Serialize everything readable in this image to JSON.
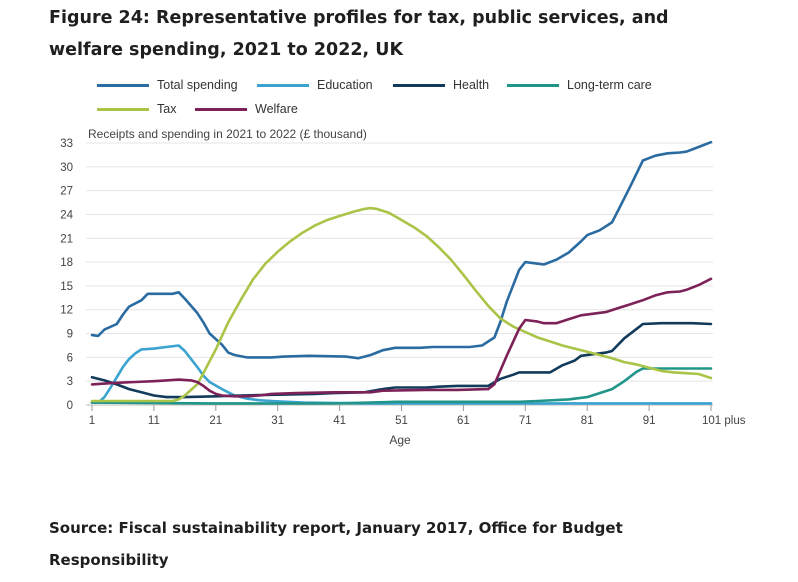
{
  "figure": {
    "title": "Figure 24: Representative profiles for tax, public services, and welfare spending, 2021 to 2022, UK",
    "source": "Source: Fiscal sustainability report, January 2017, Office for Budget Responsibility"
  },
  "chart_data": {
    "type": "line",
    "ylabel": "Receipts and spending in 2021 to 2022 (£ thousand)",
    "xlabel": "Age",
    "ylim": [
      0,
      33
    ],
    "xlim": [
      1,
      101
    ],
    "y_ticks": [
      "0",
      "3",
      "6",
      "9",
      "12",
      "15",
      "18",
      "21",
      "24",
      "27",
      "30",
      "33"
    ],
    "x_ticks": [
      {
        "value": 1,
        "label": "1"
      },
      {
        "value": 11,
        "label": "11"
      },
      {
        "value": 21,
        "label": "21"
      },
      {
        "value": 31,
        "label": "31"
      },
      {
        "value": 41,
        "label": "41"
      },
      {
        "value": 51,
        "label": "51"
      },
      {
        "value": 61,
        "label": "61"
      },
      {
        "value": 71,
        "label": "71"
      },
      {
        "value": 81,
        "label": "81"
      },
      {
        "value": 91,
        "label": "91"
      },
      {
        "value": 101,
        "label": "101 plus"
      }
    ],
    "grid": true,
    "legend_position": "top",
    "series": [
      {
        "name": "Total spending",
        "color": "#2a6ba1",
        "points": [
          [
            1,
            8.8
          ],
          [
            2,
            8.7
          ],
          [
            3,
            9.5
          ],
          [
            5,
            10.2
          ],
          [
            6,
            11.4
          ],
          [
            7,
            12.4
          ],
          [
            9,
            13.2
          ],
          [
            10,
            14.0
          ],
          [
            11,
            14.0
          ],
          [
            13,
            14.0
          ],
          [
            14,
            14.0
          ],
          [
            15,
            14.2
          ],
          [
            16,
            13.4
          ],
          [
            18,
            11.6
          ],
          [
            19,
            10.4
          ],
          [
            20,
            9.0
          ],
          [
            22,
            7.6
          ],
          [
            23,
            6.6
          ],
          [
            24,
            6.3
          ],
          [
            26,
            6.0
          ],
          [
            30,
            6.0
          ],
          [
            32,
            6.1
          ],
          [
            36,
            6.2
          ],
          [
            42,
            6.1
          ],
          [
            44,
            5.9
          ],
          [
            46,
            6.3
          ],
          [
            48,
            6.9
          ],
          [
            50,
            7.2
          ],
          [
            54,
            7.2
          ],
          [
            56,
            7.3
          ],
          [
            62,
            7.3
          ],
          [
            64,
            7.5
          ],
          [
            66,
            8.5
          ],
          [
            67,
            10.5
          ],
          [
            68,
            13.0
          ],
          [
            70,
            17.0
          ],
          [
            71,
            18.0
          ],
          [
            73,
            17.8
          ],
          [
            74,
            17.7
          ],
          [
            76,
            18.3
          ],
          [
            78,
            19.2
          ],
          [
            80,
            20.6
          ],
          [
            81,
            21.4
          ],
          [
            83,
            22.0
          ],
          [
            85,
            23.0
          ],
          [
            86,
            24.5
          ],
          [
            88,
            27.6
          ],
          [
            90,
            30.8
          ],
          [
            92,
            31.4
          ],
          [
            94,
            31.7
          ],
          [
            96,
            31.8
          ],
          [
            97,
            31.9
          ],
          [
            98,
            32.2
          ],
          [
            99,
            32.5
          ],
          [
            101,
            33.1
          ]
        ]
      },
      {
        "name": "Education",
        "color": "#3aa3d0",
        "points": [
          [
            1,
            0.3
          ],
          [
            2,
            0.3
          ],
          [
            3,
            1.0
          ],
          [
            4,
            2.2
          ],
          [
            5,
            3.5
          ],
          [
            6,
            4.8
          ],
          [
            7,
            5.8
          ],
          [
            8,
            6.5
          ],
          [
            9,
            7.0
          ],
          [
            11,
            7.1
          ],
          [
            13,
            7.3
          ],
          [
            15,
            7.5
          ],
          [
            16,
            6.8
          ],
          [
            18,
            4.8
          ],
          [
            19,
            3.7
          ],
          [
            20,
            2.9
          ],
          [
            22,
            2.0
          ],
          [
            23,
            1.6
          ],
          [
            24,
            1.2
          ],
          [
            26,
            0.8
          ],
          [
            28,
            0.6
          ],
          [
            30,
            0.5
          ],
          [
            35,
            0.3
          ],
          [
            45,
            0.2
          ],
          [
            60,
            0.2
          ],
          [
            101,
            0.2
          ]
        ]
      },
      {
        "name": "Health",
        "color": "#123a5a",
        "points": [
          [
            1,
            3.5
          ],
          [
            3,
            3.1
          ],
          [
            5,
            2.6
          ],
          [
            7,
            2.0
          ],
          [
            9,
            1.6
          ],
          [
            11,
            1.2
          ],
          [
            13,
            1.0
          ],
          [
            16,
            1.0
          ],
          [
            21,
            1.1
          ],
          [
            25,
            1.2
          ],
          [
            31,
            1.3
          ],
          [
            37,
            1.4
          ],
          [
            40,
            1.5
          ],
          [
            45,
            1.6
          ],
          [
            48,
            2.0
          ],
          [
            50,
            2.2
          ],
          [
            55,
            2.2
          ],
          [
            57,
            2.3
          ],
          [
            60,
            2.4
          ],
          [
            63,
            2.4
          ],
          [
            65,
            2.4
          ],
          [
            67,
            3.3
          ],
          [
            69,
            3.8
          ],
          [
            70,
            4.1
          ],
          [
            73,
            4.1
          ],
          [
            75,
            4.1
          ],
          [
            77,
            5.0
          ],
          [
            79,
            5.6
          ],
          [
            80,
            6.2
          ],
          [
            82,
            6.4
          ],
          [
            84,
            6.6
          ],
          [
            85,
            6.8
          ],
          [
            87,
            8.4
          ],
          [
            89,
            9.6
          ],
          [
            90,
            10.2
          ],
          [
            93,
            10.3
          ],
          [
            98,
            10.3
          ],
          [
            101,
            10.2
          ]
        ]
      },
      {
        "name": "Long-term care",
        "color": "#21958a",
        "points": [
          [
            1,
            0.3
          ],
          [
            20,
            0.2
          ],
          [
            40,
            0.2
          ],
          [
            46,
            0.3
          ],
          [
            50,
            0.4
          ],
          [
            55,
            0.4
          ],
          [
            60,
            0.4
          ],
          [
            65,
            0.4
          ],
          [
            70,
            0.4
          ],
          [
            73,
            0.5
          ],
          [
            78,
            0.7
          ],
          [
            81,
            1.0
          ],
          [
            85,
            2.0
          ],
          [
            87,
            3.0
          ],
          [
            89,
            4.2
          ],
          [
            90,
            4.6
          ],
          [
            92,
            4.6
          ],
          [
            101,
            4.6
          ]
        ]
      },
      {
        "name": "Tax",
        "color": "#a9c447",
        "points": [
          [
            1,
            0.5
          ],
          [
            10,
            0.5
          ],
          [
            14,
            0.5
          ],
          [
            15,
            0.7
          ],
          [
            16,
            1.2
          ],
          [
            18,
            2.6
          ],
          [
            19,
            4.0
          ],
          [
            21,
            7.0
          ],
          [
            23,
            10.4
          ],
          [
            25,
            13.2
          ],
          [
            27,
            15.8
          ],
          [
            29,
            17.8
          ],
          [
            31,
            19.3
          ],
          [
            33,
            20.6
          ],
          [
            35,
            21.7
          ],
          [
            37,
            22.6
          ],
          [
            39,
            23.3
          ],
          [
            41,
            23.8
          ],
          [
            43,
            24.3
          ],
          [
            45,
            24.7
          ],
          [
            46,
            24.8
          ],
          [
            47,
            24.7
          ],
          [
            49,
            24.2
          ],
          [
            51,
            23.3
          ],
          [
            53,
            22.4
          ],
          [
            55,
            21.3
          ],
          [
            57,
            19.9
          ],
          [
            59,
            18.3
          ],
          [
            61,
            16.4
          ],
          [
            63,
            14.4
          ],
          [
            65,
            12.5
          ],
          [
            67,
            10.9
          ],
          [
            69,
            9.9
          ],
          [
            71,
            9.2
          ],
          [
            73,
            8.5
          ],
          [
            75,
            8.0
          ],
          [
            77,
            7.5
          ],
          [
            79,
            7.1
          ],
          [
            81,
            6.7
          ],
          [
            83,
            6.3
          ],
          [
            85,
            5.9
          ],
          [
            87,
            5.4
          ],
          [
            89,
            5.1
          ],
          [
            91,
            4.7
          ],
          [
            93,
            4.3
          ],
          [
            95,
            4.1
          ],
          [
            97,
            4.0
          ],
          [
            99,
            3.9
          ],
          [
            101,
            3.4
          ]
        ]
      },
      {
        "name": "Welfare",
        "color": "#7c2258",
        "points": [
          [
            1,
            2.6
          ],
          [
            3,
            2.7
          ],
          [
            5,
            2.8
          ],
          [
            8,
            2.9
          ],
          [
            11,
            3.0
          ],
          [
            13,
            3.1
          ],
          [
            15,
            3.2
          ],
          [
            17,
            3.1
          ],
          [
            18,
            2.9
          ],
          [
            19,
            2.4
          ],
          [
            20,
            1.8
          ],
          [
            21,
            1.4
          ],
          [
            22,
            1.2
          ],
          [
            24,
            1.1
          ],
          [
            26,
            1.1
          ],
          [
            28,
            1.2
          ],
          [
            30,
            1.4
          ],
          [
            34,
            1.5
          ],
          [
            40,
            1.6
          ],
          [
            44,
            1.6
          ],
          [
            46,
            1.6
          ],
          [
            48,
            1.8
          ],
          [
            55,
            1.9
          ],
          [
            60,
            1.9
          ],
          [
            65,
            2.0
          ],
          [
            66,
            2.6
          ],
          [
            68,
            6.2
          ],
          [
            70,
            9.6
          ],
          [
            71,
            10.7
          ],
          [
            73,
            10.5
          ],
          [
            74,
            10.3
          ],
          [
            76,
            10.3
          ],
          [
            78,
            10.8
          ],
          [
            80,
            11.3
          ],
          [
            82,
            11.5
          ],
          [
            84,
            11.7
          ],
          [
            86,
            12.2
          ],
          [
            88,
            12.7
          ],
          [
            90,
            13.2
          ],
          [
            92,
            13.8
          ],
          [
            94,
            14.2
          ],
          [
            96,
            14.3
          ],
          [
            97,
            14.5
          ],
          [
            99,
            15.1
          ],
          [
            101,
            15.9
          ]
        ]
      }
    ]
  }
}
